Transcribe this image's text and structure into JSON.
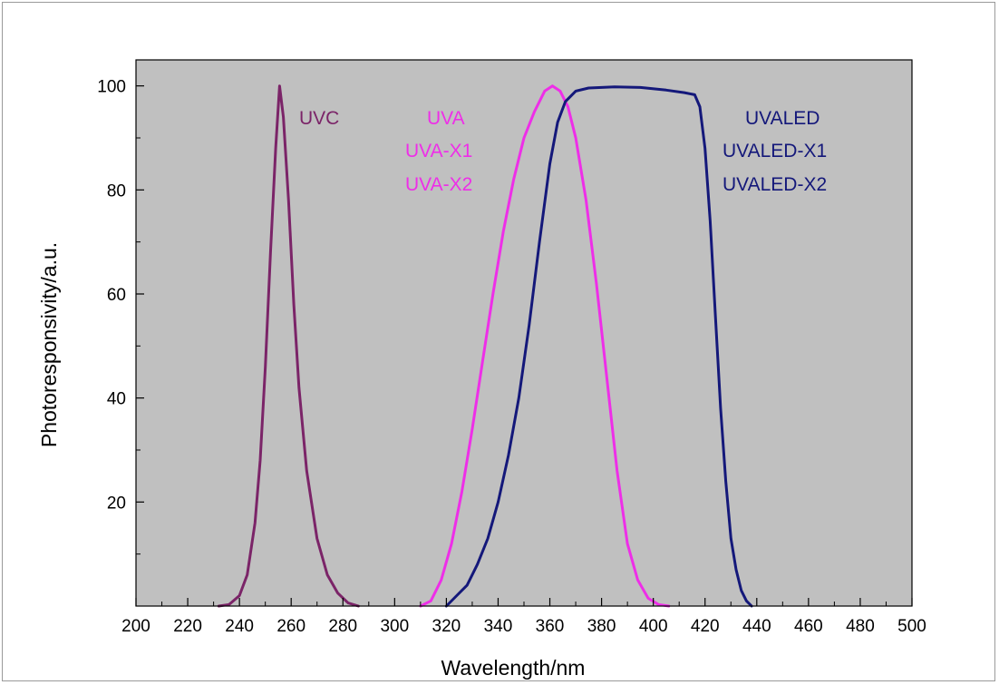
{
  "chart_data": {
    "type": "line",
    "xlabel": "Wavelength/nm",
    "ylabel": "Photoresponsivity/a.u.",
    "xlim": [
      200,
      500
    ],
    "ylim": [
      0,
      105
    ],
    "x_ticks": [
      200,
      220,
      240,
      260,
      280,
      300,
      320,
      340,
      360,
      380,
      400,
      420,
      440,
      460,
      480,
      500
    ],
    "y_ticks": [
      20,
      40,
      60,
      80,
      100
    ],
    "grid": false,
    "plot_background": "#c0c0c0",
    "series": [
      {
        "name": "UVC",
        "color": "#7b2468",
        "points": [
          [
            232,
            0
          ],
          [
            236,
            0.3
          ],
          [
            240,
            2
          ],
          [
            243,
            6
          ],
          [
            246,
            16
          ],
          [
            248,
            28
          ],
          [
            250,
            46
          ],
          [
            252,
            68
          ],
          [
            254,
            88
          ],
          [
            255.5,
            100
          ],
          [
            257,
            94
          ],
          [
            259,
            78
          ],
          [
            261,
            58
          ],
          [
            263,
            42
          ],
          [
            266,
            26
          ],
          [
            270,
            13
          ],
          [
            274,
            6
          ],
          [
            278,
            2.5
          ],
          [
            282,
            0.6
          ],
          [
            286,
            0
          ]
        ]
      },
      {
        "name": "UVA",
        "color": "#ee2ee8",
        "points": [
          [
            310,
            0
          ],
          [
            314,
            1
          ],
          [
            318,
            5
          ],
          [
            322,
            12
          ],
          [
            326,
            22
          ],
          [
            330,
            34
          ],
          [
            334,
            47
          ],
          [
            338,
            60
          ],
          [
            342,
            72
          ],
          [
            346,
            82
          ],
          [
            350,
            90
          ],
          [
            354,
            95
          ],
          [
            358,
            99
          ],
          [
            361,
            100
          ],
          [
            364,
            99
          ],
          [
            367,
            96
          ],
          [
            370,
            90
          ],
          [
            374,
            78
          ],
          [
            378,
            62
          ],
          [
            382,
            44
          ],
          [
            386,
            26
          ],
          [
            390,
            12
          ],
          [
            394,
            5
          ],
          [
            398,
            1.5
          ],
          [
            402,
            0.3
          ],
          [
            406,
            0
          ]
        ]
      },
      {
        "name": "UVALED",
        "color": "#14187a",
        "points": [
          [
            320,
            0
          ],
          [
            324,
            2
          ],
          [
            328,
            4
          ],
          [
            332,
            8
          ],
          [
            336,
            13
          ],
          [
            340,
            20
          ],
          [
            344,
            29
          ],
          [
            348,
            40
          ],
          [
            352,
            54
          ],
          [
            356,
            70
          ],
          [
            360,
            85
          ],
          [
            363,
            93
          ],
          [
            366,
            97
          ],
          [
            370,
            99
          ],
          [
            375,
            99.6
          ],
          [
            385,
            99.8
          ],
          [
            395,
            99.7
          ],
          [
            405,
            99.2
          ],
          [
            412,
            98.7
          ],
          [
            416,
            98.3
          ],
          [
            418,
            96
          ],
          [
            420,
            88
          ],
          [
            422,
            74
          ],
          [
            424,
            56
          ],
          [
            426,
            38
          ],
          [
            428,
            24
          ],
          [
            430,
            13
          ],
          [
            432,
            7
          ],
          [
            434,
            3
          ],
          [
            436,
            1
          ],
          [
            438,
            0
          ]
        ]
      }
    ],
    "annotations": [
      {
        "id": "uvc",
        "lines": [
          "UVC"
        ],
        "color": "#7b2468"
      },
      {
        "id": "uva",
        "lines": [
          "UVA",
          "UVA-X1",
          "UVA-X2"
        ],
        "color": "#ee2ee8"
      },
      {
        "id": "uvaled",
        "lines": [
          "UVALED",
          "UVALED-X1",
          "UVALED-X2"
        ],
        "color": "#14187a"
      }
    ]
  }
}
